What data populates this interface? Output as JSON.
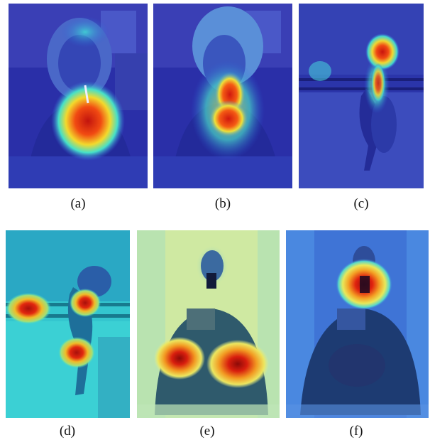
{
  "figure": {
    "panels": [
      {
        "label": "(a)",
        "scene": "woman drinking from a cup, heat centred on the cup"
      },
      {
        "label": "(b)",
        "scene": "woman drinking from a cup, heat on straw and cup"
      },
      {
        "label": "(c)",
        "scene": "horse and rider in a paddock, heat on rider"
      },
      {
        "label": "(d)",
        "scene": "horse and rider in a paddock, heat on fence, rider and horse legs"
      },
      {
        "label": "(e)",
        "scene": "man holding cameras in front of a mirror, heat on lower cameras"
      },
      {
        "label": "(f)",
        "scene": "man holding cameras in front of a mirror, heat on phone / face"
      }
    ],
    "colors": {
      "heat_low": "#1a22b8",
      "heat_mid": "#2ad7e0",
      "heat_warm": "#f2e532",
      "heat_hot": "#e01810"
    }
  }
}
